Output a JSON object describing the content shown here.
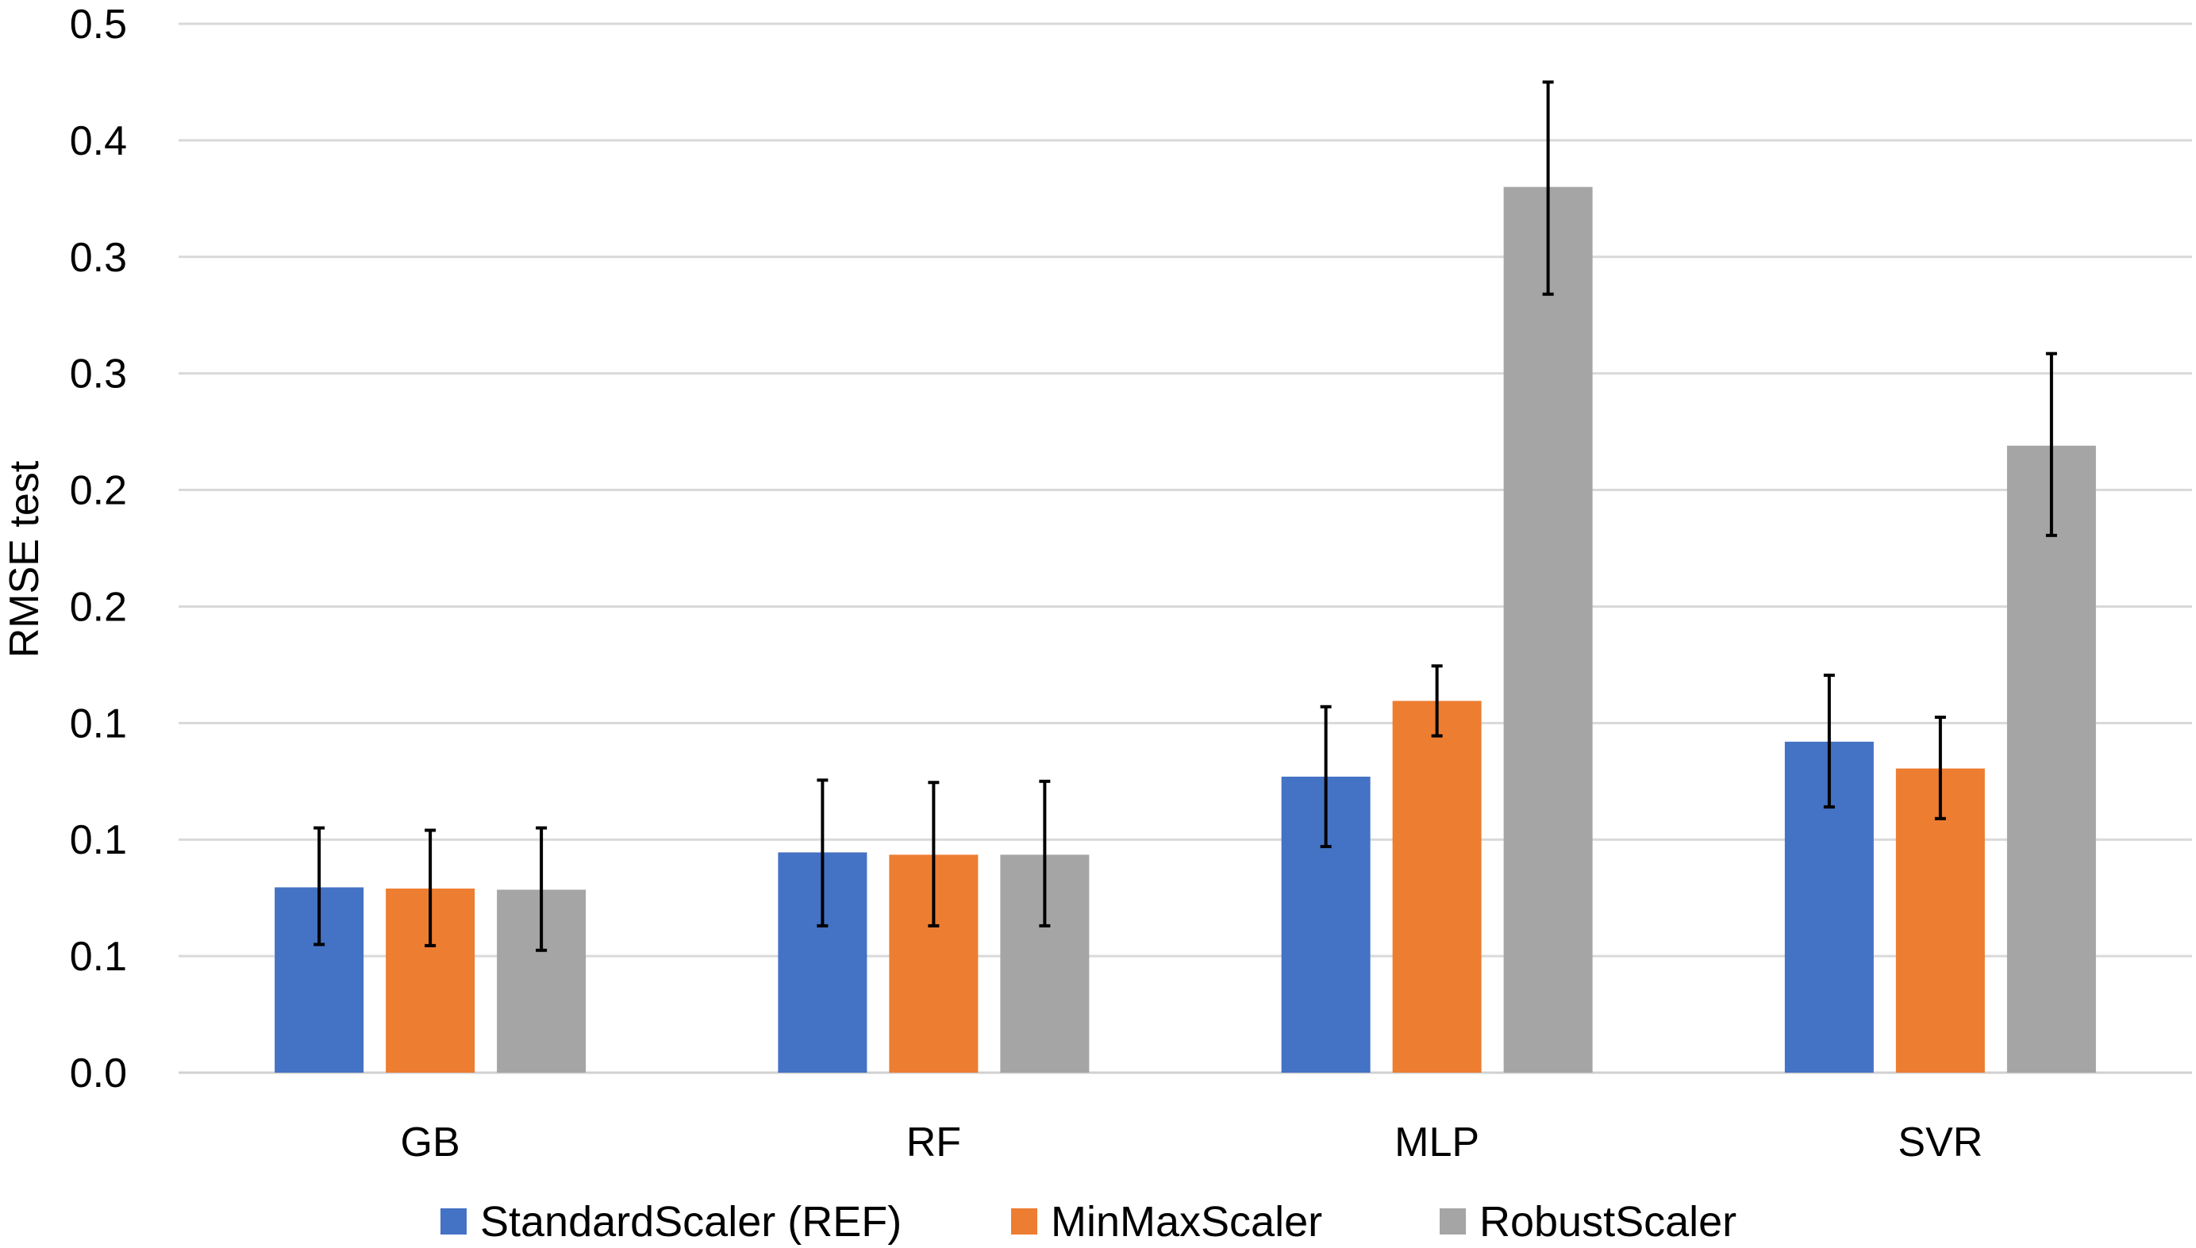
{
  "chart_data": {
    "type": "bar",
    "title": "",
    "xlabel": "",
    "ylabel": "RMSE test",
    "ylim": [
      0,
      0.45
    ],
    "ytick_values": [
      0,
      0.05,
      0.1,
      0.15,
      0.2,
      0.25,
      0.3,
      0.35,
      0.4,
      0.45
    ],
    "ytick_labels": [
      "0.0",
      "0.1",
      "0.1",
      "0.1",
      "0.2",
      "0.2",
      "0.3",
      "0.3",
      "0.4",
      "0.5"
    ],
    "grid": true,
    "legend_position": "bottom",
    "categories": [
      "GB",
      "RF",
      "MLP",
      "SVR"
    ],
    "series": [
      {
        "name": "StandardScaler (REF)",
        "color": "#4472C4",
        "values": [
          0.0795,
          0.0945,
          0.127,
          0.142
        ],
        "err_low": [
          0.055,
          0.063,
          0.097,
          0.114
        ],
        "err_high": [
          0.105,
          0.1255,
          0.157,
          0.1705
        ]
      },
      {
        "name": "MinMaxScaler",
        "color": "#ED7D31",
        "values": [
          0.079,
          0.0935,
          0.1595,
          0.1305
        ],
        "err_low": [
          0.0545,
          0.063,
          0.1445,
          0.109
        ],
        "err_high": [
          0.104,
          0.1245,
          0.1745,
          0.1525
        ]
      },
      {
        "name": "RobustScaler",
        "color": "#A5A5A5",
        "values": [
          0.0785,
          0.0935,
          0.38,
          0.269
        ],
        "err_low": [
          0.0525,
          0.063,
          0.334,
          0.2305
        ],
        "err_high": [
          0.105,
          0.125,
          0.425,
          0.3085
        ]
      }
    ]
  }
}
